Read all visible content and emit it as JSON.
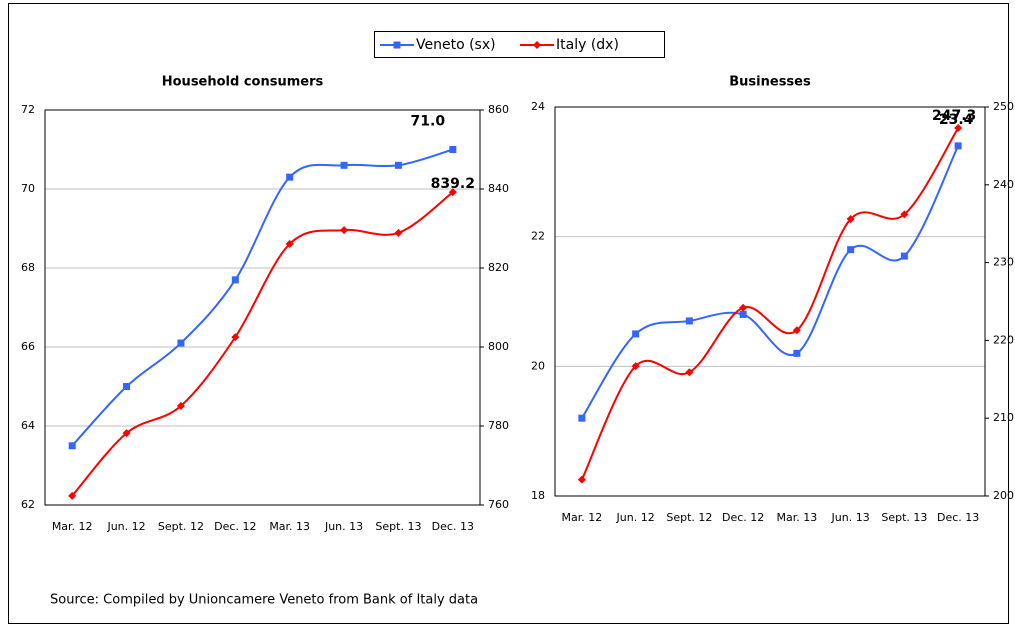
{
  "source": "Source: Compiled by Unioncamere Veneto from Bank of Italy data",
  "chart_data": [
    {
      "type": "line",
      "title": "Household consumers",
      "categories": [
        "Mar. 12",
        "Jun. 12",
        "Sept. 12",
        "Dec. 12",
        "Mar. 13",
        "Jun. 13",
        "Sept. 13",
        "Dec. 13"
      ],
      "ylim": [
        62,
        72
      ],
      "yticks": [
        62,
        64,
        66,
        68,
        70,
        72
      ],
      "y2lim": [
        760,
        860
      ],
      "y2ticks": [
        760,
        780,
        800,
        820,
        840,
        860
      ],
      "grid": true,
      "series": [
        {
          "name": "Veneto (sx)",
          "color": "#3366ff",
          "marker": "square",
          "values": [
            63.5,
            65.0,
            66.1,
            67.7,
            70.3,
            70.6,
            70.6,
            71.0
          ],
          "value_labels": [
            null,
            null,
            null,
            null,
            null,
            null,
            null,
            "71.0"
          ]
        },
        {
          "name": "Italy (dx)",
          "color": "#ff0000",
          "marker": "diamond",
          "axis": "y2",
          "values": [
            762.3,
            778.2,
            785.1,
            802.5,
            826.1,
            829.6,
            828.9,
            839.2
          ],
          "value_labels": [
            null,
            null,
            null,
            null,
            null,
            null,
            null,
            "839.2"
          ]
        }
      ]
    },
    {
      "type": "line",
      "title": "Businesses",
      "categories": [
        "Mar. 12",
        "Jun. 12",
        "Sept. 12",
        "Dec. 12",
        "Mar. 13",
        "Jun. 13",
        "Sept. 13",
        "Dec. 13"
      ],
      "ylim": [
        18,
        24
      ],
      "yticks": [
        18,
        20,
        22,
        24
      ],
      "y2lim": [
        200,
        250
      ],
      "y2ticks": [
        200,
        210,
        220,
        230,
        240,
        250
      ],
      "grid": true,
      "series": [
        {
          "color": "#3366ff",
          "marker": "square",
          "values": [
            19.2,
            20.5,
            20.7,
            20.8,
            20.2,
            21.8,
            21.7,
            23.4
          ],
          "value_labels": [
            null,
            null,
            null,
            null,
            null,
            null,
            null,
            "23.4"
          ]
        },
        {
          "color": "#ff0000",
          "marker": "diamond",
          "axis": "y2",
          "values": [
            202.1,
            216.7,
            215.9,
            224.2,
            221.3,
            235.6,
            236.2,
            247.3
          ],
          "value_labels": [
            null,
            null,
            null,
            null,
            null,
            null,
            null,
            "247.3"
          ]
        }
      ]
    }
  ]
}
